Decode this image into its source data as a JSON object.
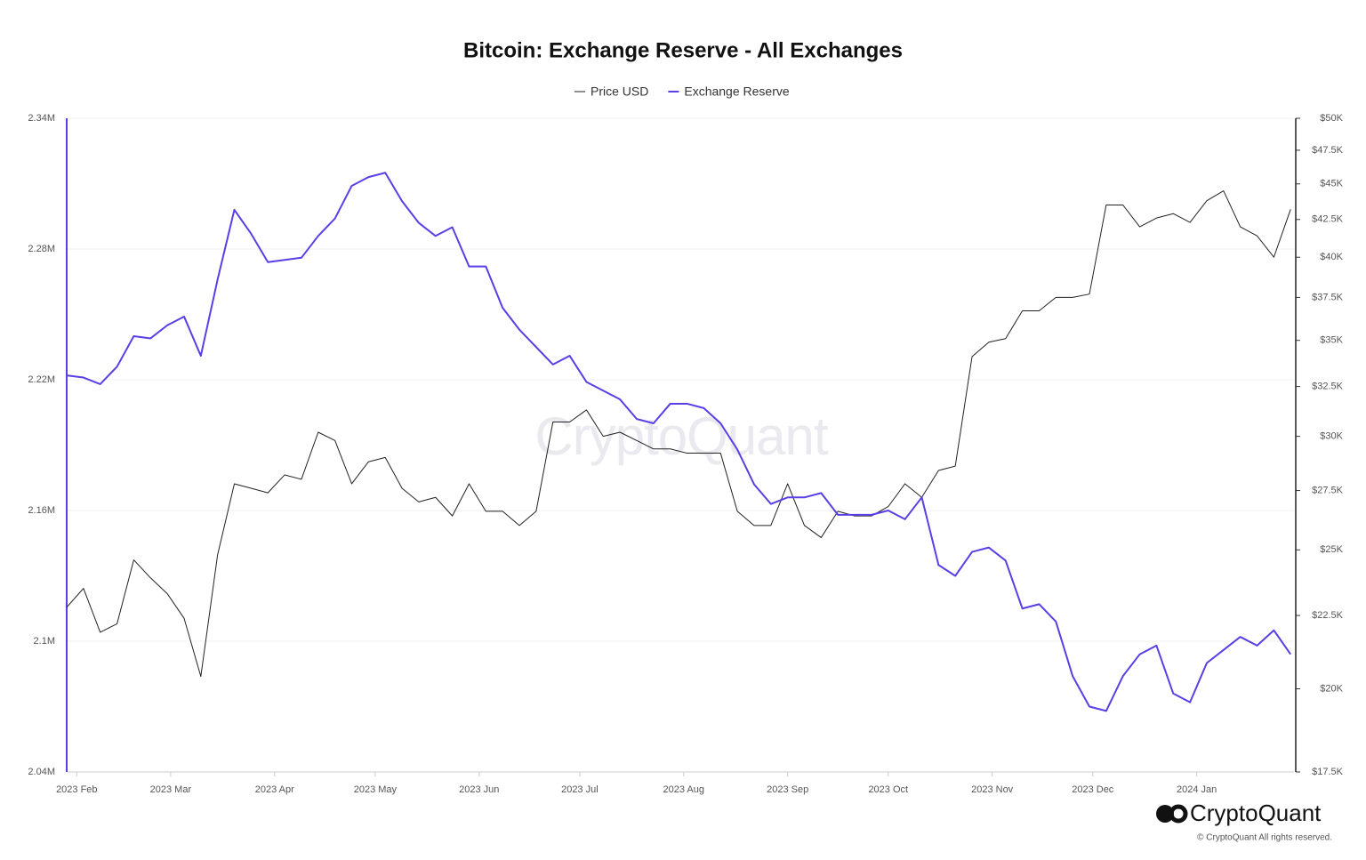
{
  "chart_data": {
    "type": "line",
    "title": "Bitcoin: Exchange Reserve - All Exchanges",
    "watermark": "CryptoQuant",
    "brand": "CryptoQuant",
    "copyright": "© CryptoQuant All rights reserved.",
    "x": [
      0,
      5,
      10,
      15,
      20,
      25,
      30,
      35,
      40,
      45,
      50,
      55,
      60,
      65,
      70,
      75,
      80,
      85,
      90,
      95,
      100,
      105,
      110,
      115,
      120,
      125,
      130,
      135,
      140,
      145,
      150,
      155,
      160,
      165,
      170,
      175,
      180,
      185,
      190,
      195,
      200,
      205,
      210,
      215,
      220,
      225,
      230,
      235,
      240,
      245,
      250,
      255,
      260,
      265,
      270,
      275,
      280,
      285,
      290,
      295,
      300,
      305,
      310,
      315,
      320,
      325,
      330,
      335,
      340,
      345,
      350,
      355,
      360,
      365
    ],
    "xlim": [
      0,
      366
    ],
    "xticks": [
      {
        "value": 3,
        "label": "2023 Feb"
      },
      {
        "value": 31,
        "label": "2023 Mar"
      },
      {
        "value": 62,
        "label": "2023 Apr"
      },
      {
        "value": 92,
        "label": "2023 May"
      },
      {
        "value": 123,
        "label": "2023 Jun"
      },
      {
        "value": 153,
        "label": "2023 Jul"
      },
      {
        "value": 184,
        "label": "2023 Aug"
      },
      {
        "value": 215,
        "label": "2023 Sep"
      },
      {
        "value": 245,
        "label": "2023 Oct"
      },
      {
        "value": 276,
        "label": "2023 Nov"
      },
      {
        "value": 306,
        "label": "2023 Dec"
      },
      {
        "value": 337,
        "label": "2024 Jan"
      }
    ],
    "ylim": [
      2040000,
      2340000
    ],
    "yticks": [
      {
        "value": 2040000,
        "label": "2.04M"
      },
      {
        "value": 2100000,
        "label": "2.1M"
      },
      {
        "value": 2160000,
        "label": "2.16M"
      },
      {
        "value": 2220000,
        "label": "2.22M"
      },
      {
        "value": 2280000,
        "label": "2.28M"
      },
      {
        "value": 2340000,
        "label": "2.34M"
      }
    ],
    "y2lim": [
      17500,
      50000
    ],
    "y2log": true,
    "y2ticks": [
      {
        "value": 17500,
        "label": "$17.5K"
      },
      {
        "value": 20000,
        "label": "$20K"
      },
      {
        "value": 22500,
        "label": "$22.5K"
      },
      {
        "value": 25000,
        "label": "$25K"
      },
      {
        "value": 27500,
        "label": "$27.5K"
      },
      {
        "value": 30000,
        "label": "$30K"
      },
      {
        "value": 32500,
        "label": "$32.5K"
      },
      {
        "value": 35000,
        "label": "$35K"
      },
      {
        "value": 37500,
        "label": "$37.5K"
      },
      {
        "value": 40000,
        "label": "$40K"
      },
      {
        "value": 42500,
        "label": "$42.5K"
      },
      {
        "value": 45000,
        "label": "$45K"
      },
      {
        "value": 47500,
        "label": "$47.5K"
      },
      {
        "value": 50000,
        "label": "$50K"
      }
    ],
    "grid": true,
    "series": [
      {
        "name": "Price USD",
        "color": "#222222",
        "axis": "y2",
        "values": [
          22800,
          23500,
          21900,
          22200,
          24600,
          23900,
          23300,
          22400,
          20400,
          24800,
          27800,
          27600,
          27400,
          28200,
          28000,
          30200,
          29800,
          27800,
          28800,
          29000,
          27600,
          27000,
          27200,
          26400,
          27800,
          26600,
          26600,
          26000,
          26600,
          30700,
          30700,
          31300,
          30000,
          30200,
          29800,
          29400,
          29400,
          29200,
          29200,
          29200,
          26600,
          26000,
          26000,
          27800,
          26000,
          25500,
          26600,
          26400,
          26400,
          26800,
          27800,
          27200,
          28400,
          28600,
          34100,
          34900,
          35100,
          36700,
          36700,
          37500,
          37500,
          37700,
          43500,
          43500,
          42000,
          42600,
          42900,
          42300,
          43800,
          44500,
          42000,
          41400,
          40000,
          43200
        ]
      },
      {
        "name": "Exchange Reserve",
        "color": "#5a3ee6",
        "values": [
          2222000,
          2221000,
          2218000,
          2226000,
          2240000,
          2239000,
          2245000,
          2249000,
          2231000,
          2266000,
          2298000,
          2287000,
          2274000,
          2275000,
          2276000,
          2286000,
          2294000,
          2309000,
          2313000,
          2315000,
          2302000,
          2292000,
          2286000,
          2290000,
          2272000,
          2272000,
          2253000,
          2243000,
          2235000,
          2227000,
          2231000,
          2219000,
          2215000,
          2211000,
          2202000,
          2200000,
          2209000,
          2209000,
          2207000,
          2200000,
          2188000,
          2172000,
          2163000,
          2166000,
          2166000,
          2168000,
          2158000,
          2158000,
          2158000,
          2160000,
          2156000,
          2166000,
          2135000,
          2130000,
          2141000,
          2143000,
          2137000,
          2115000,
          2117000,
          2109000,
          2084000,
          2070000,
          2068000,
          2084000,
          2094000,
          2098000,
          2076000,
          2072000,
          2090000,
          2096000,
          2102000,
          2098000,
          2105000,
          2094000
        ]
      }
    ]
  }
}
